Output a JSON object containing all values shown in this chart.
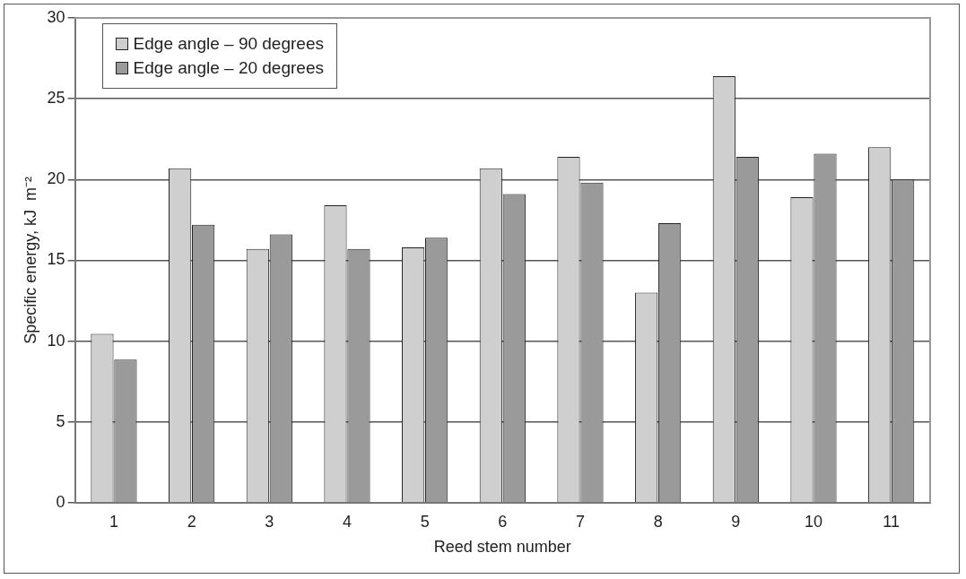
{
  "chart_data": {
    "type": "bar",
    "xlabel": "Reed stem number",
    "ylabel": "Specific energy, kJ  m⁻²",
    "categories": [
      "1",
      "2",
      "3",
      "4",
      "5",
      "6",
      "7",
      "8",
      "9",
      "10",
      "11"
    ],
    "series": [
      {
        "name": "Edge angle – 90 degrees",
        "color": "#cfcfcf",
        "values": [
          10.45,
          20.7,
          15.7,
          18.4,
          15.8,
          20.7,
          21.4,
          13.0,
          26.4,
          18.9,
          22.0
        ]
      },
      {
        "name": "Edge angle – 20 degrees",
        "color": "#9a9a9a",
        "values": [
          8.85,
          17.2,
          16.6,
          15.7,
          16.4,
          19.1,
          19.8,
          17.3,
          21.4,
          21.6,
          20.0
        ]
      }
    ],
    "ylim": [
      0,
      30
    ],
    "yticks": [
      0,
      5,
      10,
      15,
      20,
      25,
      30
    ],
    "grid": "y",
    "legend": "top left"
  }
}
